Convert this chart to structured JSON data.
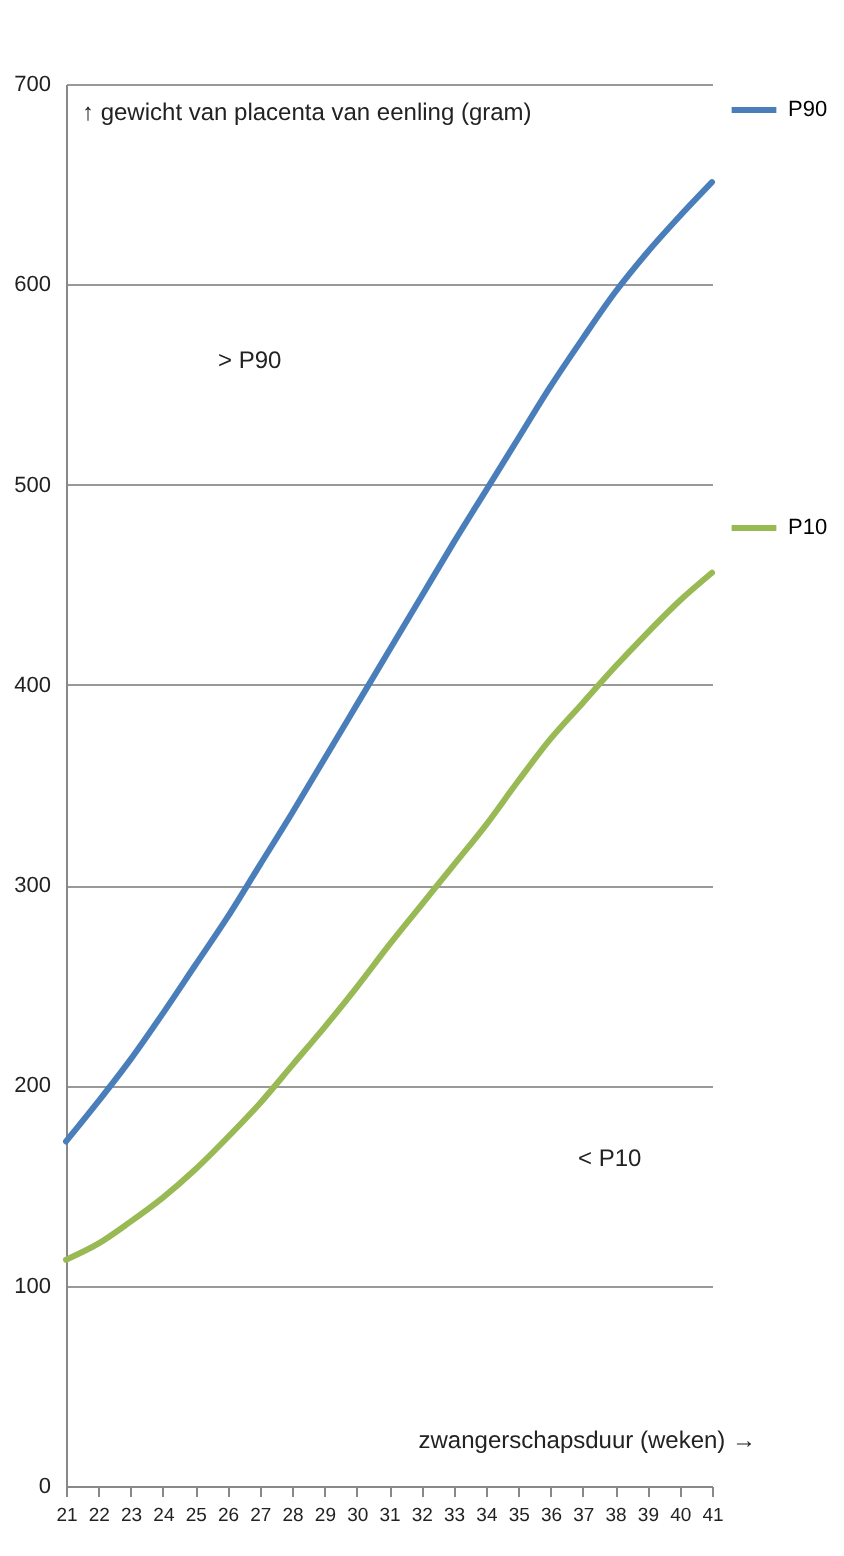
{
  "chart_data": {
    "type": "line",
    "xlabel": "zwangerschapsduur (weken) →",
    "ylabel": "↑ gewicht van placenta van eenling (gram)",
    "x": [
      21,
      22,
      23,
      24,
      25,
      26,
      27,
      28,
      29,
      30,
      31,
      32,
      33,
      34,
      35,
      36,
      37,
      38,
      39,
      40,
      41
    ],
    "series": [
      {
        "name": "P90",
        "color": "#4a7ebb",
        "values": [
          172,
          192,
          213,
          236,
          260,
          284,
          310,
          336,
          363,
          390,
          417,
          444,
          471,
          497,
          523,
          549,
          573,
          596,
          616,
          634,
          651
        ]
      },
      {
        "name": "P10",
        "color": "#98b954",
        "values": [
          113,
          121,
          132,
          144,
          158,
          174,
          191,
          210,
          229,
          249,
          270,
          290,
          310,
          330,
          352,
          373,
          391,
          409,
          426,
          442,
          456
        ]
      }
    ],
    "xlim": [
      21,
      41
    ],
    "xticks": [
      21,
      22,
      23,
      24,
      25,
      26,
      27,
      28,
      29,
      30,
      31,
      32,
      33,
      34,
      35,
      36,
      37,
      38,
      39,
      40,
      41
    ],
    "ylim": [
      0,
      700
    ],
    "yticks": [
      0,
      100,
      200,
      300,
      400,
      500,
      600,
      700
    ],
    "grid": "y",
    "legend": "right",
    "annotations": [
      "> P90",
      "< P10"
    ]
  }
}
